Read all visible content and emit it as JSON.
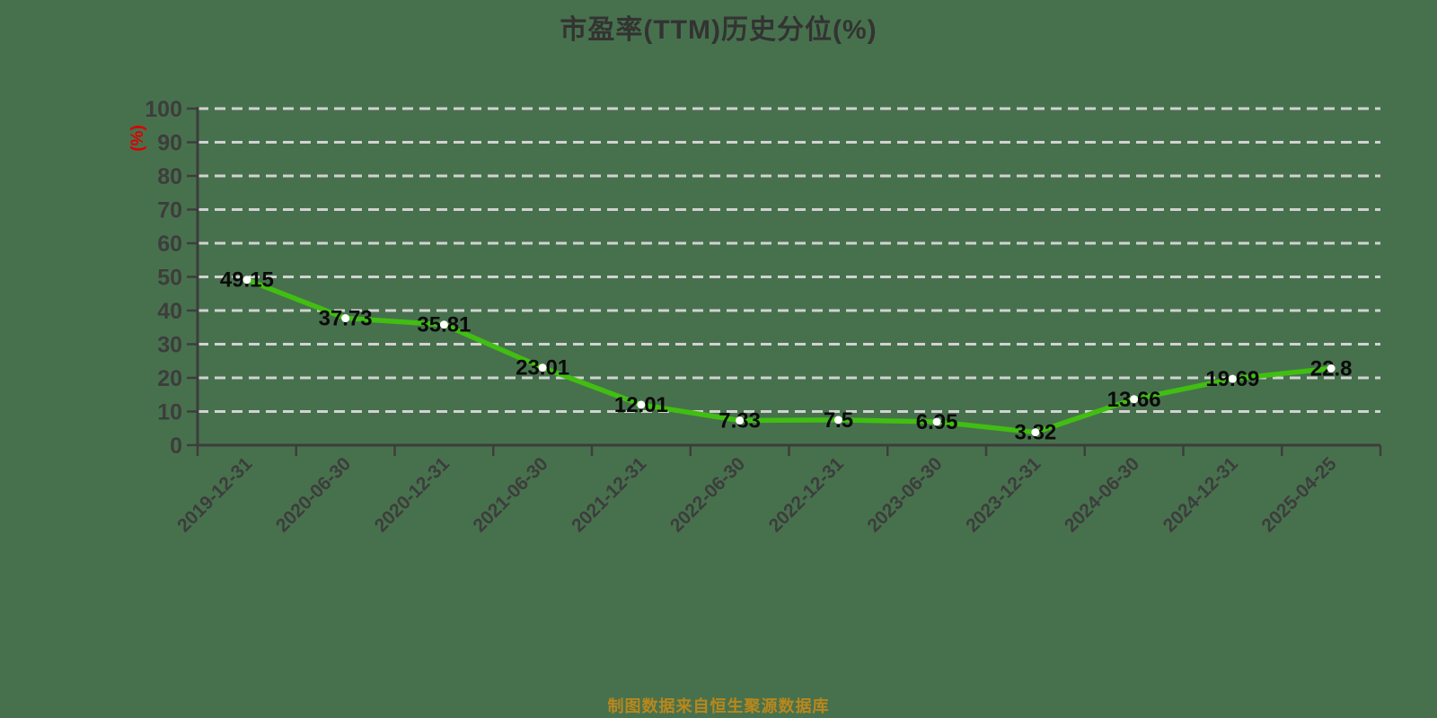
{
  "header": {
    "title": "市盈率(TTM)历史分位(%)"
  },
  "footer": {
    "caption": "制图数据来自恒生聚源数据库"
  },
  "chart_data": {
    "type": "line",
    "title": "市盈率(TTM)历史分位(%)",
    "xlabel": "",
    "ylabel": "(%)",
    "categories": [
      "2019-12-31",
      "2020-06-30",
      "2020-12-31",
      "2021-06-30",
      "2021-12-31",
      "2022-06-30",
      "2022-12-31",
      "2023-06-30",
      "2023-12-31",
      "2024-06-30",
      "2024-12-31",
      "2025-04-25"
    ],
    "values": [
      49.15,
      37.73,
      35.81,
      23.01,
      12.01,
      7.33,
      7.5,
      6.95,
      3.82,
      13.66,
      19.69,
      22.8
    ],
    "ylim": [
      0,
      100
    ],
    "yticks": [
      0,
      10,
      20,
      30,
      40,
      50,
      60,
      70,
      80,
      90,
      100
    ],
    "grid": true,
    "grid_style": "dashed",
    "legend_position": "none",
    "marker": "circle",
    "colors": {
      "background": "#47714d",
      "line": "#41be12",
      "marker_fill": "#ffffff",
      "grid_line": "#d2d2d2",
      "axis_line": "#3d3d3d",
      "tick_label": "#3d3d3d",
      "value_label": "#0a0a0a",
      "title": "#333333",
      "y_unit_label": "#dd0000",
      "caption": "#b9871c"
    }
  }
}
